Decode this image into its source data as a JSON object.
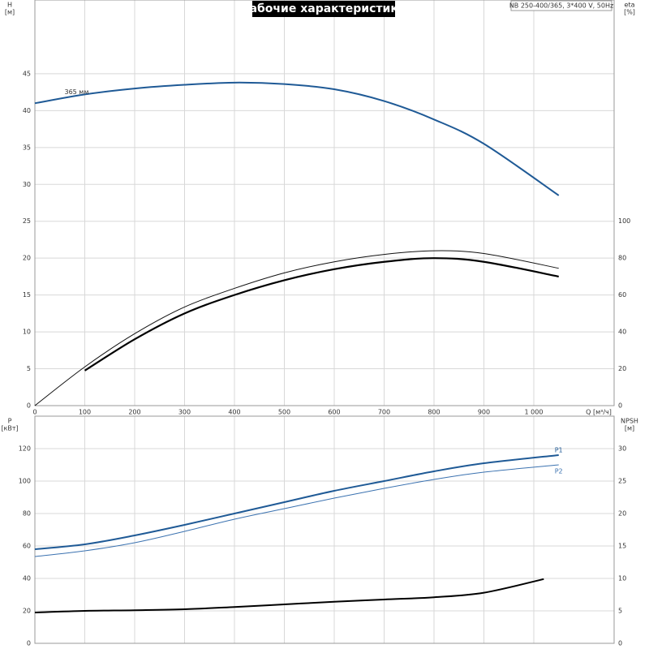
{
  "chart_data": [
    {
      "type": "line",
      "title": "Рабочие характеристики",
      "subtitle": "NB 250-400/365, 3*400 V, 50Hz",
      "ylabel": "H",
      "yunit": "[м]",
      "y2label": "eta",
      "y2unit": "[%]",
      "xlabel": "Q [м³/ч]",
      "xlim": [
        0,
        1161
      ],
      "xticks": [
        0,
        100,
        200,
        300,
        400,
        500,
        600,
        700,
        800,
        900,
        {
          "value": 1000,
          "label": "1 000"
        }
      ],
      "ylim": [
        0,
        55
      ],
      "yticks": [
        0,
        5,
        10,
        15,
        20,
        25,
        30,
        35,
        40,
        45
      ],
      "y2lim": [
        0,
        220
      ],
      "y2ticks": [
        0,
        20,
        40,
        60,
        80,
        100
      ],
      "grid": true,
      "series": [
        {
          "name": "365 мм",
          "color": "#1f5a96",
          "axis": "y",
          "x": [
            0,
            100,
            200,
            300,
            400,
            500,
            600,
            700,
            800,
            900,
            1050
          ],
          "values": [
            41,
            42.2,
            43,
            43.5,
            43.8,
            43.6,
            42.9,
            41.3,
            38.8,
            35.5,
            28.5
          ]
        },
        {
          "color": "#111111",
          "axis": "y2",
          "x": [
            0,
            100,
            200,
            300,
            400,
            500,
            600,
            700,
            800,
            900,
            1050
          ],
          "values": [
            0,
            21,
            39,
            53.5,
            63.6,
            72,
            78,
            82,
            84,
            82.5,
            74.5
          ]
        },
        {
          "color": "#000000",
          "axis": "y2",
          "x": [
            100,
            200,
            300,
            400,
            500,
            600,
            700,
            800,
            900,
            1050
          ],
          "values": [
            19,
            36,
            50,
            60,
            68,
            74,
            78,
            80,
            78,
            70
          ]
        }
      ]
    },
    {
      "type": "line",
      "ylabel": "P",
      "yunit": "[кВт]",
      "y2label": "NPSH",
      "y2unit": "[м]",
      "xlim": [
        0,
        1161
      ],
      "ylim": [
        0,
        140
      ],
      "yticks": [
        0,
        20,
        40,
        60,
        80,
        100,
        120
      ],
      "y2lim": [
        0,
        35
      ],
      "y2ticks": [
        0,
        5,
        10,
        15,
        20,
        25,
        30
      ],
      "grid": true,
      "series": [
        {
          "name": "P1",
          "color": "#1f5a96",
          "axis": "y",
          "x": [
            0,
            100,
            200,
            300,
            400,
            500,
            600,
            700,
            800,
            900,
            1050
          ],
          "values": [
            58,
            61,
            66.5,
            73,
            80,
            87,
            94,
            100,
            106,
            111,
            116
          ]
        },
        {
          "name": "P2",
          "color": "#3b72b0",
          "axis": "y",
          "x": [
            0,
            100,
            200,
            300,
            400,
            500,
            600,
            700,
            800,
            900,
            1050
          ],
          "values": [
            53.5,
            57,
            62,
            69,
            76.5,
            83,
            89.5,
            95.5,
            101,
            105.5,
            110
          ]
        },
        {
          "color": "#000000",
          "axis": "y2",
          "x": [
            0,
            100,
            200,
            300,
            400,
            500,
            600,
            700,
            800,
            900,
            1020
          ],
          "values": [
            4.75,
            5.0,
            5.1,
            5.25,
            5.6,
            6.0,
            6.4,
            6.75,
            7.1,
            7.8,
            9.9
          ]
        }
      ]
    }
  ]
}
